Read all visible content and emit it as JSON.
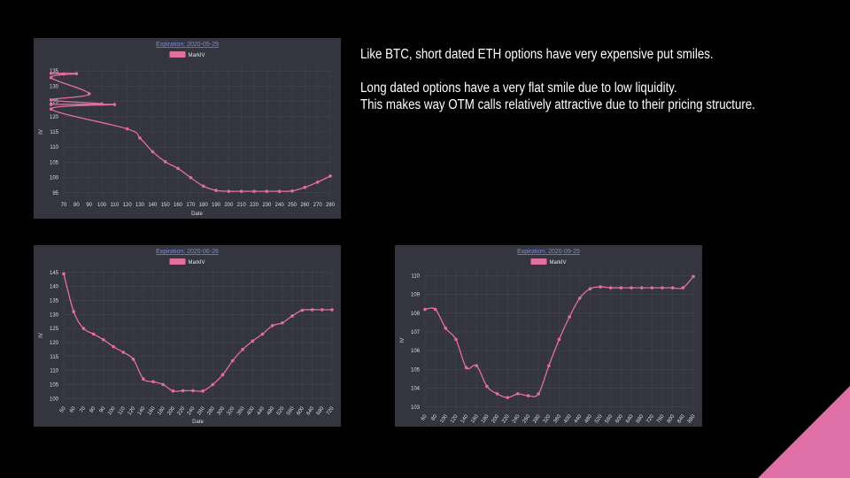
{
  "text": {
    "line1": "Like BTC, short dated ETH options have very expensive put smiles.",
    "line2": "Long dated options have a very flat smile due to low liquidity.",
    "line3": "This makes way OTM calls relatively attractive due to their pricing structure."
  },
  "colors": {
    "background": "#000000",
    "panel": "#35353f",
    "series": "#e0709c",
    "accent": "#e070a8",
    "title": "#7b8fd6"
  },
  "chart_data": [
    {
      "type": "line",
      "title": "Expiration: 2020-05-29",
      "xlabel": "Date",
      "ylabel": "IV",
      "legend": "top-center",
      "grid": true,
      "x_ticks": [
        "70",
        "80",
        "90",
        "100",
        "110",
        "120",
        "130",
        "140",
        "150",
        "160",
        "170",
        "180",
        "190",
        "200",
        "210",
        "220",
        "230",
        "240",
        "250",
        "260",
        "270",
        "280"
      ],
      "y_ticks": [
        "95",
        "100",
        "105",
        "110",
        "115",
        "120",
        "125",
        "130",
        "135"
      ],
      "ylim": [
        93.5,
        136.5
      ],
      "series": [
        {
          "name": "MarkIV",
          "x": [
            "70",
            "75",
            "80",
            "85",
            "90",
            "95",
            "100",
            "105",
            "110",
            "115",
            "120",
            "130",
            "140",
            "150",
            "160",
            "170",
            "180",
            "190",
            "200",
            "210",
            "220",
            "230",
            "240",
            "250",
            "260",
            "270",
            "280"
          ],
          "values": [
            134,
            134.2,
            134.1,
            132.8,
            127.5,
            125.5,
            124.2,
            124,
            124,
            122.5,
            116,
            113,
            108.5,
            105.2,
            103,
            100,
            97.2,
            95.8,
            95.5,
            95.5,
            95.5,
            95.5,
            95.5,
            95.6,
            96.8,
            98.5,
            100.5
          ]
        }
      ]
    },
    {
      "type": "line",
      "title": "Expiration: 2020-06-26",
      "xlabel": "Date",
      "ylabel": "IV",
      "legend": "top-center",
      "grid": true,
      "x_ticks": [
        "50",
        "60",
        "70",
        "80",
        "90",
        "100",
        "110",
        "120",
        "140",
        "160",
        "180",
        "200",
        "220",
        "240",
        "260",
        "280",
        "300",
        "320",
        "360",
        "400",
        "440",
        "480",
        "520",
        "560",
        "600",
        "640",
        "680",
        "720"
      ],
      "y_ticks": [
        "100",
        "105",
        "110",
        "115",
        "120",
        "125",
        "130",
        "135",
        "140",
        "145"
      ],
      "ylim": [
        98.5,
        146.5
      ],
      "series": [
        {
          "name": "MarkIV",
          "x": [
            "50",
            "60",
            "70",
            "80",
            "90",
            "100",
            "110",
            "120",
            "140",
            "160",
            "180",
            "200",
            "220",
            "240",
            "260",
            "280",
            "300",
            "320",
            "360",
            "400",
            "440",
            "480",
            "520",
            "560",
            "600",
            "640",
            "680",
            "720"
          ],
          "values": [
            144.5,
            131,
            125,
            123,
            121,
            118.5,
            116.5,
            114,
            107,
            106,
            105,
            102.7,
            102.8,
            102.8,
            102.7,
            105,
            108.5,
            113.5,
            117.5,
            120.5,
            123,
            126,
            127,
            129.5,
            131.5,
            131.7,
            131.7,
            131.7
          ]
        }
      ]
    },
    {
      "type": "line",
      "title": "Expiration: 2020-09-25",
      "xlabel": "",
      "ylabel": "IV",
      "legend": "top-center",
      "grid": true,
      "x_ticks": [
        "60",
        "80",
        "100",
        "120",
        "140",
        "160",
        "180",
        "200",
        "220",
        "240",
        "260",
        "280",
        "320",
        "360",
        "400",
        "440",
        "480",
        "520",
        "560",
        "600",
        "640",
        "680",
        "720",
        "760",
        "800",
        "840",
        "880"
      ],
      "y_ticks": [
        "103",
        "104",
        "105",
        "106",
        "107",
        "108",
        "109",
        "110"
      ],
      "ylim": [
        102.8,
        110.3
      ],
      "series": [
        {
          "name": "MarkIV",
          "x": [
            "60",
            "80",
            "100",
            "120",
            "140",
            "160",
            "180",
            "200",
            "220",
            "240",
            "260",
            "280",
            "320",
            "360",
            "400",
            "440",
            "480",
            "520",
            "560",
            "600",
            "640",
            "680",
            "720",
            "760",
            "800",
            "840",
            "880"
          ],
          "values": [
            108.2,
            108.2,
            107.2,
            106.6,
            105.1,
            105.2,
            104.1,
            103.7,
            103.5,
            103.7,
            103.6,
            103.7,
            105.2,
            106.6,
            107.8,
            108.8,
            109.3,
            109.4,
            109.35,
            109.35,
            109.35,
            109.35,
            109.35,
            109.35,
            109.35,
            109.35,
            109.95
          ]
        }
      ]
    }
  ]
}
